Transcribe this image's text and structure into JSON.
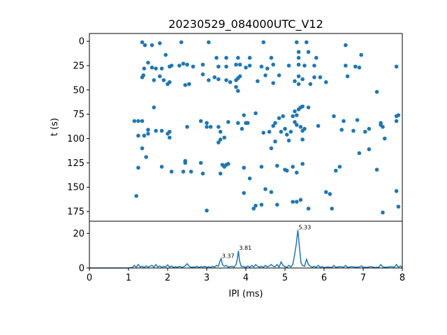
{
  "chart_data": [
    {
      "type": "scatter",
      "title": "20230529_084000UTC_V12",
      "xlabel": "",
      "ylabel": "t (s)",
      "xlim": [
        0,
        8
      ],
      "ylim": [
        185,
        -8
      ],
      "y_inverted": true,
      "yticks": [
        0,
        25,
        50,
        75,
        100,
        125,
        150,
        175
      ],
      "yticklabels": [
        "0",
        "25",
        "50",
        "75",
        "100",
        "125",
        "150",
        "175"
      ],
      "marker_color": "#1f77b4",
      "points": [
        [
          1.35,
          1
        ],
        [
          1.42,
          4
        ],
        [
          1.6,
          4
        ],
        [
          1.8,
          2
        ],
        [
          2.35,
          1
        ],
        [
          3.05,
          1
        ],
        [
          4.45,
          1
        ],
        [
          5.3,
          1
        ],
        [
          5.55,
          1
        ],
        [
          6.55,
          4
        ],
        [
          1.95,
          14
        ],
        [
          5.35,
          11
        ],
        [
          5.6,
          11
        ],
        [
          6.95,
          14
        ],
        [
          3.25,
          17
        ],
        [
          3.5,
          17
        ],
        [
          3.8,
          17
        ],
        [
          4.1,
          17
        ],
        [
          4.65,
          17
        ],
        [
          5.35,
          17
        ],
        [
          5.8,
          17
        ],
        [
          1.5,
          22
        ],
        [
          1.4,
          28
        ],
        [
          1.6,
          27
        ],
        [
          1.7,
          28
        ],
        [
          1.85,
          28
        ],
        [
          2.1,
          25
        ],
        [
          2.05,
          26
        ],
        [
          2.3,
          25
        ],
        [
          2.4,
          23
        ],
        [
          2.5,
          24
        ],
        [
          2.65,
          26
        ],
        [
          2.9,
          24
        ],
        [
          3.3,
          26
        ],
        [
          3.5,
          26
        ],
        [
          3.75,
          24
        ],
        [
          3.85,
          24
        ],
        [
          4.0,
          27
        ],
        [
          4.1,
          25
        ],
        [
          4.4,
          26
        ],
        [
          4.55,
          28
        ],
        [
          4.7,
          24
        ],
        [
          5.1,
          25
        ],
        [
          5.35,
          24
        ],
        [
          5.5,
          25
        ],
        [
          5.75,
          25
        ],
        [
          6.55,
          25
        ],
        [
          6.8,
          26
        ],
        [
          6.9,
          27
        ],
        [
          7.85,
          26
        ],
        [
          1.35,
          37
        ],
        [
          1.38,
          35
        ],
        [
          1.8,
          36
        ],
        [
          1.9,
          40
        ],
        [
          1.65,
          40
        ],
        [
          2.0,
          44
        ],
        [
          2.05,
          42
        ],
        [
          2.45,
          45
        ],
        [
          2.55,
          44
        ],
        [
          2.9,
          34
        ],
        [
          3.05,
          40
        ],
        [
          3.2,
          37
        ],
        [
          3.3,
          39
        ],
        [
          3.5,
          40
        ],
        [
          3.6,
          42
        ],
        [
          3.75,
          40
        ],
        [
          3.8,
          38
        ],
        [
          3.85,
          36
        ],
        [
          3.75,
          47
        ],
        [
          3.8,
          51
        ],
        [
          4.3,
          41
        ],
        [
          4.5,
          35
        ],
        [
          4.7,
          43
        ],
        [
          4.85,
          35
        ],
        [
          5.25,
          41
        ],
        [
          5.35,
          36
        ],
        [
          5.35,
          44
        ],
        [
          5.45,
          39
        ],
        [
          5.65,
          44
        ],
        [
          5.75,
          37
        ],
        [
          5.9,
          37
        ],
        [
          6.05,
          42
        ],
        [
          6.6,
          36
        ],
        [
          7.35,
          52
        ],
        [
          1.65,
          68
        ],
        [
          1.15,
          82
        ],
        [
          1.25,
          82
        ],
        [
          1.35,
          82
        ],
        [
          1.25,
          97
        ],
        [
          1.4,
          97
        ],
        [
          1.5,
          95
        ],
        [
          1.5,
          91
        ],
        [
          1.7,
          92
        ],
        [
          1.85,
          92
        ],
        [
          2.05,
          93
        ],
        [
          2.0,
          95
        ],
        [
          2.05,
          99
        ],
        [
          2.5,
          88
        ],
        [
          2.85,
          82
        ],
        [
          3.0,
          84
        ],
        [
          3.0,
          88
        ],
        [
          3.1,
          88
        ],
        [
          3.3,
          88
        ],
        [
          3.35,
          93
        ],
        [
          3.35,
          101
        ],
        [
          3.45,
          99
        ],
        [
          3.3,
          104
        ],
        [
          3.55,
          83
        ],
        [
          3.8,
          84
        ],
        [
          3.95,
          76
        ],
        [
          4.0,
          84
        ],
        [
          4.05,
          84
        ],
        [
          3.9,
          90
        ],
        [
          4.25,
          74
        ],
        [
          4.45,
          94
        ],
        [
          4.6,
          93
        ],
        [
          4.7,
          87
        ],
        [
          4.75,
          84
        ],
        [
          4.85,
          79
        ],
        [
          4.95,
          77
        ],
        [
          4.9,
          93
        ],
        [
          5.0,
          90
        ],
        [
          5.05,
          96
        ],
        [
          5.1,
          102
        ],
        [
          5.15,
          93
        ],
        [
          5.2,
          77
        ],
        [
          5.25,
          72
        ],
        [
          5.35,
          70
        ],
        [
          5.4,
          68
        ],
        [
          5.45,
          67
        ],
        [
          5.6,
          68
        ],
        [
          5.3,
          86
        ],
        [
          5.4,
          88
        ],
        [
          5.45,
          92
        ],
        [
          5.5,
          90
        ],
        [
          5.45,
          101
        ],
        [
          5.25,
          83
        ],
        [
          5.3,
          76
        ],
        [
          5.85,
          87
        ],
        [
          6.25,
          77
        ],
        [
          6.45,
          91
        ],
        [
          6.5,
          82
        ],
        [
          6.75,
          92
        ],
        [
          6.85,
          81
        ],
        [
          7.05,
          93
        ],
        [
          7.15,
          90
        ],
        [
          7.45,
          86
        ],
        [
          7.5,
          88
        ],
        [
          7.85,
          77
        ],
        [
          7.9,
          76
        ],
        [
          7.85,
          82
        ],
        [
          7.45,
          84
        ],
        [
          7.55,
          100
        ],
        [
          1.35,
          110
        ],
        [
          1.45,
          119
        ],
        [
          1.25,
          130
        ],
        [
          1.2,
          159
        ],
        [
          1.85,
          129
        ],
        [
          2.1,
          134
        ],
        [
          2.4,
          134
        ],
        [
          2.45,
          123
        ],
        [
          2.45,
          125
        ],
        [
          2.6,
          134
        ],
        [
          2.85,
          125
        ],
        [
          2.9,
          136
        ],
        [
          3.35,
          136
        ],
        [
          3.4,
          127
        ],
        [
          3.45,
          129
        ],
        [
          3.5,
          127
        ],
        [
          3.55,
          126
        ],
        [
          3.95,
          130
        ],
        [
          4.1,
          141
        ],
        [
          4.4,
          129
        ],
        [
          4.65,
          110
        ],
        [
          4.75,
          103
        ],
        [
          4.8,
          128
        ],
        [
          5.0,
          132
        ],
        [
          5.05,
          133
        ],
        [
          5.2,
          129
        ],
        [
          5.3,
          135
        ],
        [
          5.45,
          126
        ],
        [
          6.3,
          133
        ],
        [
          6.4,
          129
        ],
        [
          6.9,
          115
        ],
        [
          7.15,
          111
        ],
        [
          7.35,
          132
        ],
        [
          3.0,
          174
        ],
        [
          3.95,
          156
        ],
        [
          4.2,
          172
        ],
        [
          4.25,
          169
        ],
        [
          4.4,
          168
        ],
        [
          4.5,
          152
        ],
        [
          4.65,
          155
        ],
        [
          4.8,
          168
        ],
        [
          5.2,
          165
        ],
        [
          5.3,
          165
        ],
        [
          5.4,
          163
        ],
        [
          5.6,
          172
        ],
        [
          6.05,
          155
        ],
        [
          6.15,
          157
        ],
        [
          6.2,
          172
        ],
        [
          7.85,
          154
        ],
        [
          7.9,
          170
        ],
        [
          7.5,
          176
        ]
      ]
    },
    {
      "type": "line",
      "title": "",
      "xlabel": "IPI (ms)",
      "ylabel": "",
      "xlim": [
        0,
        8
      ],
      "ylim": [
        0,
        27
      ],
      "xticks": [
        0,
        1,
        2,
        3,
        4,
        5,
        6,
        7,
        8
      ],
      "xticklabels": [
        "0",
        "1",
        "2",
        "3",
        "4",
        "5",
        "6",
        "7",
        "8"
      ],
      "yticks": [
        0,
        20
      ],
      "yticklabels": [
        "0",
        "20"
      ],
      "line_color": "#1f77b4",
      "peaks": [
        {
          "x": 3.37,
          "y": 5.4,
          "label": "3.37"
        },
        {
          "x": 3.81,
          "y": 10,
          "label": "3.81"
        },
        {
          "x": 5.33,
          "y": 22,
          "label": "5.33"
        }
      ],
      "x": [
        0,
        1.0,
        1.1,
        1.15,
        1.2,
        1.25,
        1.3,
        1.35,
        1.4,
        1.45,
        1.5,
        1.55,
        1.6,
        1.65,
        1.7,
        1.75,
        1.8,
        1.85,
        1.9,
        1.95,
        2.0,
        2.05,
        2.1,
        2.15,
        2.2,
        2.25,
        2.3,
        2.35,
        2.4,
        2.45,
        2.5,
        2.55,
        2.6,
        2.65,
        2.7,
        2.75,
        2.8,
        2.85,
        2.9,
        2.95,
        3.0,
        3.05,
        3.1,
        3.15,
        3.2,
        3.25,
        3.3,
        3.33,
        3.37,
        3.4,
        3.45,
        3.5,
        3.55,
        3.6,
        3.65,
        3.7,
        3.75,
        3.78,
        3.81,
        3.84,
        3.88,
        3.95,
        4.0,
        4.05,
        4.1,
        4.15,
        4.2,
        4.25,
        4.3,
        4.35,
        4.4,
        4.45,
        4.5,
        4.55,
        4.6,
        4.65,
        4.7,
        4.75,
        4.8,
        4.85,
        4.9,
        4.95,
        5.0,
        5.05,
        5.1,
        5.15,
        5.2,
        5.25,
        5.29,
        5.33,
        5.37,
        5.41,
        5.45,
        5.5,
        5.55,
        5.6,
        5.65,
        5.7,
        5.75,
        5.8,
        5.85,
        5.9,
        5.95,
        6.0,
        6.1,
        6.2,
        6.25,
        6.3,
        6.4,
        6.5,
        6.55,
        6.6,
        6.7,
        6.8,
        6.9,
        6.95,
        7.0,
        7.1,
        7.2,
        7.3,
        7.4,
        7.45,
        7.5,
        7.6,
        7.7,
        7.8,
        7.85,
        7.9,
        7.95,
        8.0
      ],
      "y": [
        0,
        0,
        0.3,
        1.5,
        0.4,
        2.0,
        0.5,
        1.0,
        0.3,
        1.2,
        0.5,
        1.0,
        1.5,
        0.5,
        2.0,
        0.6,
        1.2,
        0.4,
        1.0,
        0.6,
        1.8,
        0.5,
        1.2,
        0.3,
        0.8,
        0.4,
        1.0,
        0.5,
        0.6,
        1.2,
        2.5,
        1.0,
        0.4,
        0.6,
        0.5,
        1.0,
        0.3,
        0.8,
        0.5,
        1.0,
        0.4,
        0.8,
        0.3,
        1.0,
        0.5,
        1.5,
        1.0,
        3.5,
        5.4,
        2.0,
        1.0,
        1.5,
        0.5,
        0.8,
        1.0,
        0.5,
        2.0,
        5.0,
        10.0,
        4.0,
        1.0,
        0.8,
        0.3,
        1.2,
        0.4,
        1.5,
        0.6,
        2.0,
        1.0,
        0.5,
        1.0,
        0.4,
        1.5,
        0.6,
        1.2,
        2.0,
        1.0,
        0.8,
        2.0,
        0.5,
        3.5,
        1.5,
        0.8,
        0.4,
        1.5,
        0.6,
        2.0,
        8.0,
        14.0,
        22.0,
        12.0,
        3.0,
        1.5,
        1.0,
        5.0,
        2.0,
        1.0,
        0.5,
        1.0,
        0.4,
        1.5,
        0.5,
        0.8,
        0.3,
        0.6,
        0.3,
        1.5,
        0.4,
        0.8,
        0.5,
        1.5,
        0.4,
        0.8,
        0.5,
        0.6,
        1.2,
        0.5,
        0.4,
        0.8,
        0.3,
        0.5,
        2.0,
        0.6,
        0.4,
        0.8,
        0.5,
        2.0,
        0.5,
        1.2,
        0.4
      ]
    }
  ]
}
